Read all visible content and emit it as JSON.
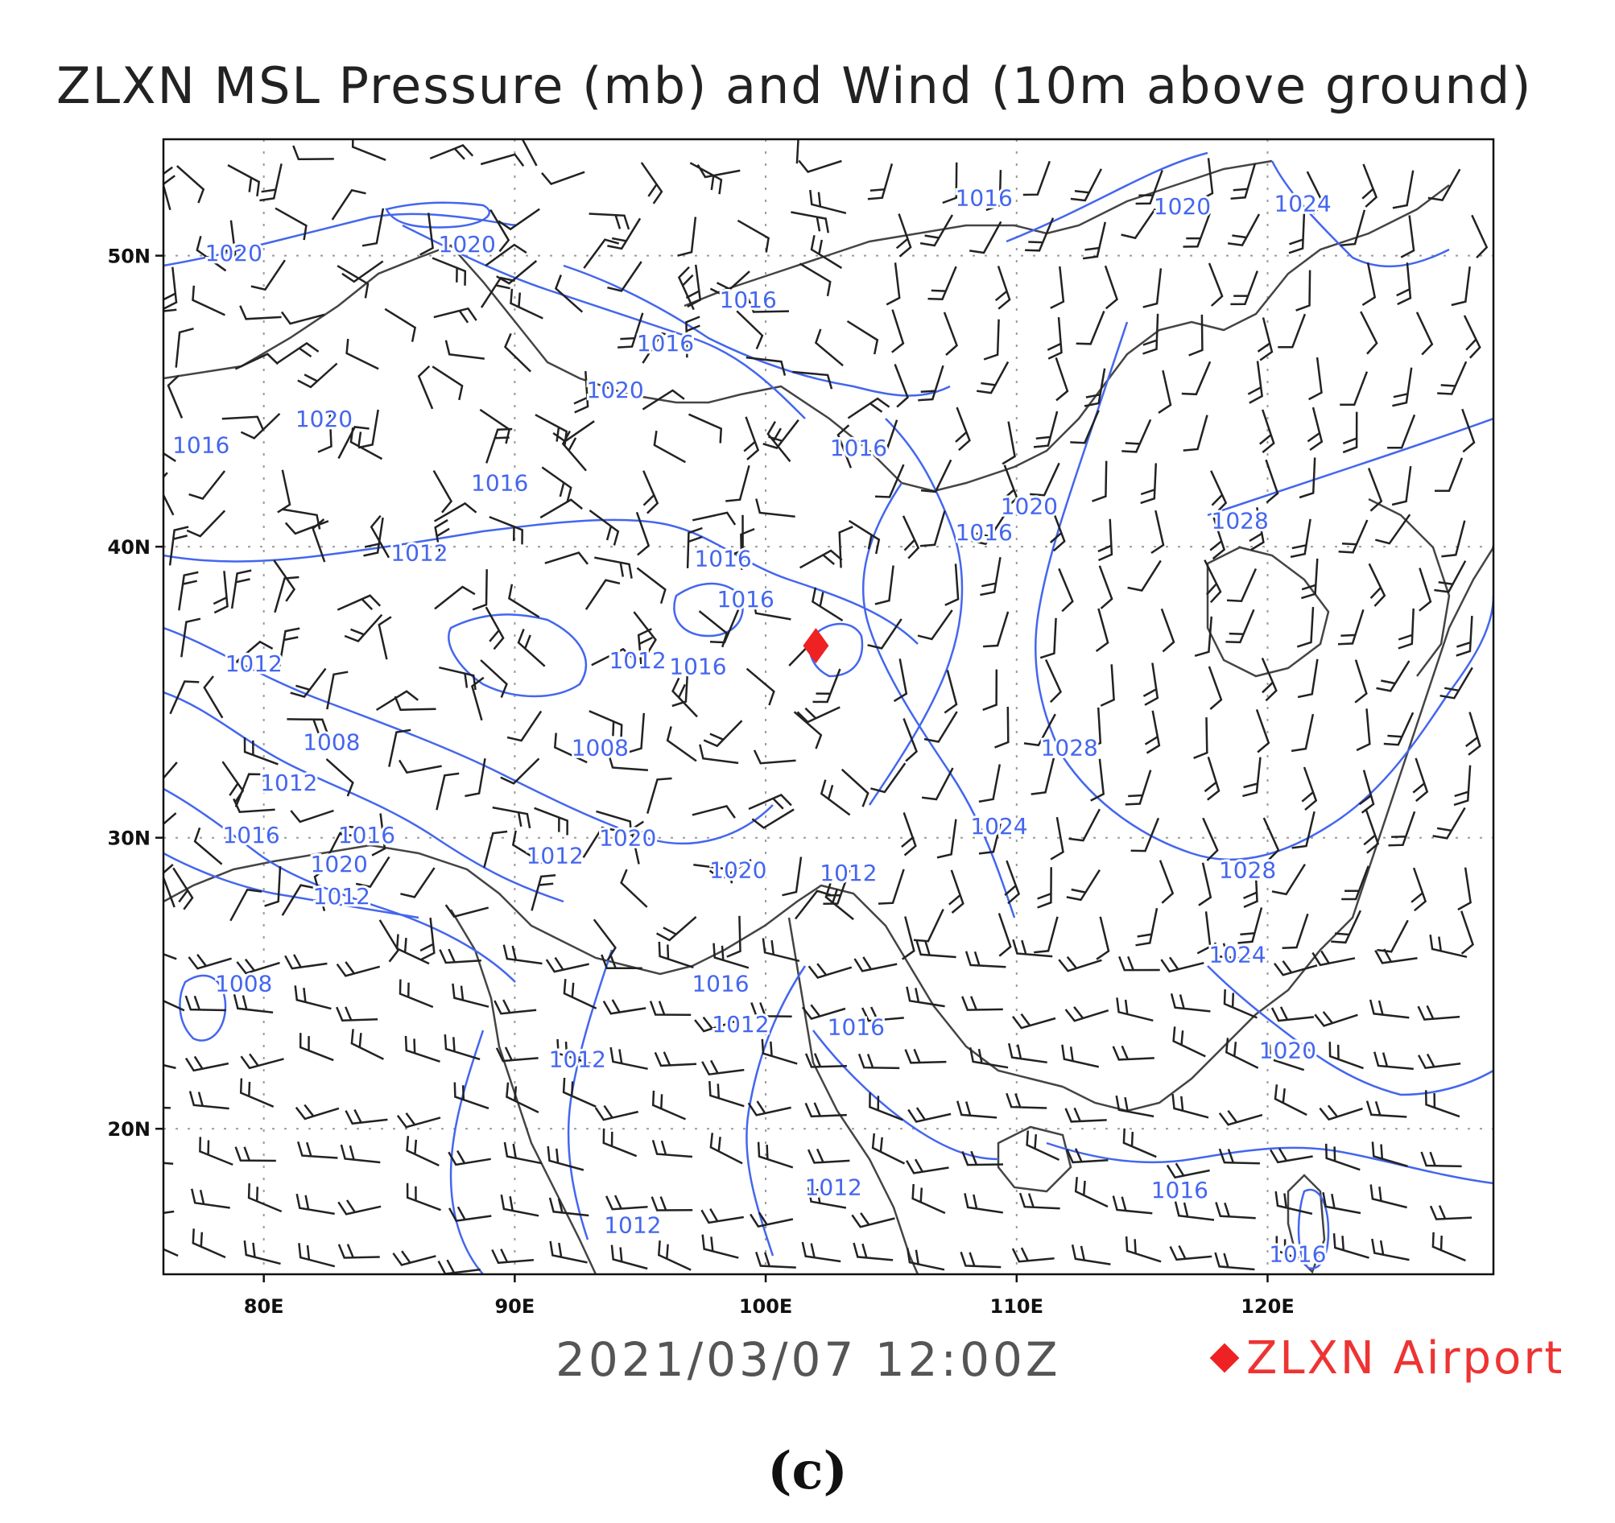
{
  "title": "ZLXN MSL Pressure (mb) and Wind (10m above ground)",
  "timestamp": "2021/03/07 12:00Z",
  "legend": {
    "marker": "diamond",
    "label": "ZLXN Airport",
    "color": "#ee2222"
  },
  "panel_label": "(c)",
  "map": {
    "lon_range": [
      76,
      129
    ],
    "lat_range": [
      15,
      54
    ],
    "lon_ticks": [
      "80E",
      "90E",
      "100E",
      "110E",
      "120E"
    ],
    "lat_ticks": [
      "50N",
      "40N",
      "30N",
      "20N"
    ],
    "isobar_color": "#4466ee",
    "border_color": "#444444",
    "airport": {
      "name": "ZLXN",
      "lon": 102.0,
      "lat": 36.6
    },
    "isobar_labels": [
      {
        "text": "1020",
        "lon": 78.8,
        "lat": 50.1
      },
      {
        "text": "1020",
        "lon": 88.1,
        "lat": 50.4
      },
      {
        "text": "1016",
        "lon": 108.7,
        "lat": 52.0
      },
      {
        "text": "1020",
        "lon": 116.6,
        "lat": 51.7
      },
      {
        "text": "1024",
        "lon": 121.4,
        "lat": 51.8
      },
      {
        "text": "1016",
        "lon": 99.3,
        "lat": 48.5
      },
      {
        "text": "1016",
        "lon": 96.0,
        "lat": 47.0
      },
      {
        "text": "1020",
        "lon": 94.0,
        "lat": 45.4
      },
      {
        "text": "1020",
        "lon": 82.4,
        "lat": 44.4
      },
      {
        "text": "1016",
        "lon": 77.5,
        "lat": 43.5
      },
      {
        "text": "1016",
        "lon": 103.7,
        "lat": 43.4
      },
      {
        "text": "1016",
        "lon": 89.4,
        "lat": 42.2
      },
      {
        "text": "1020",
        "lon": 110.5,
        "lat": 41.4
      },
      {
        "text": "1016",
        "lon": 108.7,
        "lat": 40.5
      },
      {
        "text": "1028",
        "lon": 118.9,
        "lat": 40.9
      },
      {
        "text": "1012",
        "lon": 86.2,
        "lat": 39.8
      },
      {
        "text": "1016",
        "lon": 98.3,
        "lat": 39.6
      },
      {
        "text": "1016",
        "lon": 99.2,
        "lat": 38.2
      },
      {
        "text": "1012",
        "lon": 79.6,
        "lat": 36.0
      },
      {
        "text": "1012",
        "lon": 94.9,
        "lat": 36.1
      },
      {
        "text": "1016",
        "lon": 97.3,
        "lat": 35.9
      },
      {
        "text": "1008",
        "lon": 82.7,
        "lat": 33.3
      },
      {
        "text": "1008",
        "lon": 93.4,
        "lat": 33.1
      },
      {
        "text": "1028",
        "lon": 112.1,
        "lat": 33.1
      },
      {
        "text": "1012",
        "lon": 81.0,
        "lat": 31.9
      },
      {
        "text": "1024",
        "lon": 109.3,
        "lat": 30.4
      },
      {
        "text": "1016",
        "lon": 79.5,
        "lat": 30.1
      },
      {
        "text": "1016",
        "lon": 84.1,
        "lat": 30.1
      },
      {
        "text": "1020",
        "lon": 94.5,
        "lat": 30.0
      },
      {
        "text": "1012",
        "lon": 91.6,
        "lat": 29.4
      },
      {
        "text": "1020",
        "lon": 83.0,
        "lat": 29.1
      },
      {
        "text": "1020",
        "lon": 98.9,
        "lat": 28.9
      },
      {
        "text": "1012",
        "lon": 103.3,
        "lat": 28.8
      },
      {
        "text": "1028",
        "lon": 119.2,
        "lat": 28.9
      },
      {
        "text": "1012",
        "lon": 83.1,
        "lat": 28.0
      },
      {
        "text": "1024",
        "lon": 118.8,
        "lat": 26.0
      },
      {
        "text": "1008",
        "lon": 79.2,
        "lat": 25.0
      },
      {
        "text": "1016",
        "lon": 98.2,
        "lat": 25.0
      },
      {
        "text": "1012",
        "lon": 99.0,
        "lat": 23.6
      },
      {
        "text": "1016",
        "lon": 103.6,
        "lat": 23.5
      },
      {
        "text": "1012",
        "lon": 92.5,
        "lat": 22.4
      },
      {
        "text": "1020",
        "lon": 120.8,
        "lat": 22.7
      },
      {
        "text": "1016",
        "lon": 116.5,
        "lat": 17.9
      },
      {
        "text": "1012",
        "lon": 102.7,
        "lat": 18.0
      },
      {
        "text": "1012",
        "lon": 94.7,
        "lat": 16.7
      },
      {
        "text": "1016",
        "lon": 121.2,
        "lat": 15.7
      }
    ]
  }
}
